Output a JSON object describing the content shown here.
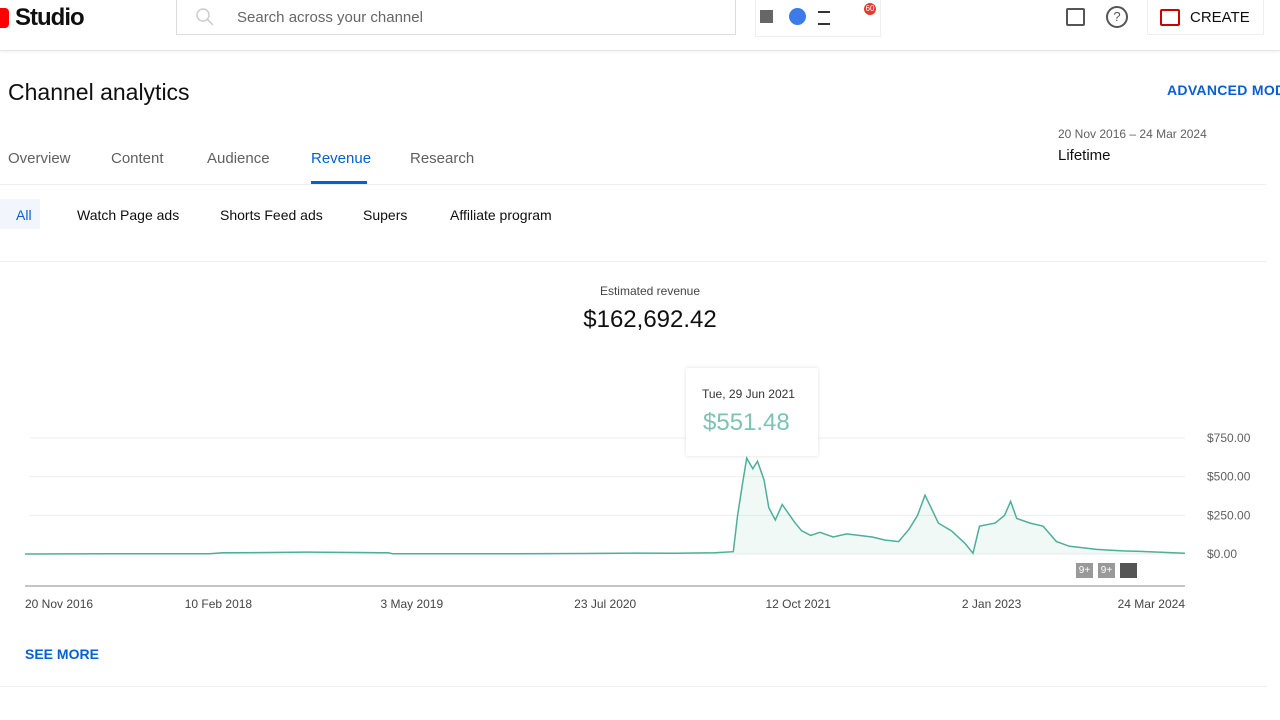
{
  "header": {
    "logo": "Studio",
    "search_placeholder": "Search across your channel",
    "notification_count": "60",
    "create": "CREATE"
  },
  "page": {
    "title": "Channel analytics",
    "advanced": "ADVANCED MODE",
    "date_range": "20 Nov 2016 – 24 Mar 2024",
    "period": "Lifetime",
    "tabs": [
      "Overview",
      "Content",
      "Audience",
      "Revenue",
      "Research"
    ],
    "chips": [
      "All",
      "Watch Page ads",
      "Shorts Feed ads",
      "Supers",
      "Affiliate program"
    ],
    "metric_label": "Estimated revenue",
    "metric_value": "$162,692.42",
    "tooltip": {
      "date": "Tue, 29 Jun 2021",
      "value": "$551.48"
    },
    "badges": [
      "9+",
      "9+"
    ],
    "see_more": "SEE MORE"
  },
  "chart_data": {
    "type": "line",
    "xlim": [
      "2016-11-20",
      "2024-03-24"
    ],
    "xticks": [
      {
        "value": "2016-11-20",
        "label": "20 Nov 2016"
      },
      {
        "value": "2018-02-10",
        "label": "10 Feb 2018"
      },
      {
        "value": "2019-05-03",
        "label": "3 May 2019"
      },
      {
        "value": "2020-07-23",
        "label": "23 Jul 2020"
      },
      {
        "value": "2021-10-12",
        "label": "12 Oct 2021"
      },
      {
        "value": "2023-01-02",
        "label": "2 Jan 2023"
      },
      {
        "value": "2024-03-24",
        "label": "24 Mar 2024"
      }
    ],
    "ylim": [
      0,
      750
    ],
    "yticks": [
      {
        "value": 0,
        "label": "$0.00"
      },
      {
        "value": 250,
        "label": "$250.00"
      },
      {
        "value": 500,
        "label": "$500.00"
      },
      {
        "value": 750,
        "label": "$750.00"
      }
    ],
    "grid": true,
    "series": [
      {
        "color": "#4fae9a",
        "x": [
          "2016-11-20",
          "2017-06-01",
          "2018-01-20",
          "2018-02-20",
          "2018-06-01",
          "2018-09-01",
          "2019-01-01",
          "2019-03-10",
          "2019-03-20",
          "2020-01-01",
          "2020-06-01",
          "2020-10-01",
          "2021-01-01",
          "2021-04-01",
          "2021-05-15",
          "2021-05-25",
          "2021-06-05",
          "2021-06-15",
          "2021-06-29",
          "2021-07-10",
          "2021-07-25",
          "2021-08-05",
          "2021-08-20",
          "2021-09-05",
          "2021-09-20",
          "2021-10-05",
          "2021-10-20",
          "2021-11-10",
          "2021-12-01",
          "2022-01-01",
          "2022-02-01",
          "2022-03-01",
          "2022-04-01",
          "2022-05-01",
          "2022-06-01",
          "2022-06-25",
          "2022-07-15",
          "2022-08-01",
          "2022-08-15",
          "2022-09-01",
          "2022-10-01",
          "2022-11-01",
          "2022-11-20",
          "2022-12-05",
          "2023-01-10",
          "2023-02-01",
          "2023-02-15",
          "2023-03-01",
          "2023-04-01",
          "2023-05-01",
          "2023-06-01",
          "2023-07-01",
          "2023-08-01",
          "2023-09-01",
          "2023-11-01",
          "2024-01-01",
          "2024-03-24"
        ],
        "values": [
          0,
          1,
          2,
          8,
          10,
          12,
          10,
          8,
          1,
          1,
          3,
          6,
          5,
          8,
          15,
          250,
          450,
          620,
          551,
          600,
          480,
          300,
          220,
          320,
          260,
          200,
          150,
          120,
          140,
          110,
          130,
          120,
          110,
          90,
          80,
          160,
          250,
          380,
          300,
          200,
          150,
          70,
          5,
          180,
          200,
          250,
          340,
          230,
          200,
          180,
          80,
          50,
          40,
          30,
          20,
          15,
          5
        ]
      }
    ]
  }
}
